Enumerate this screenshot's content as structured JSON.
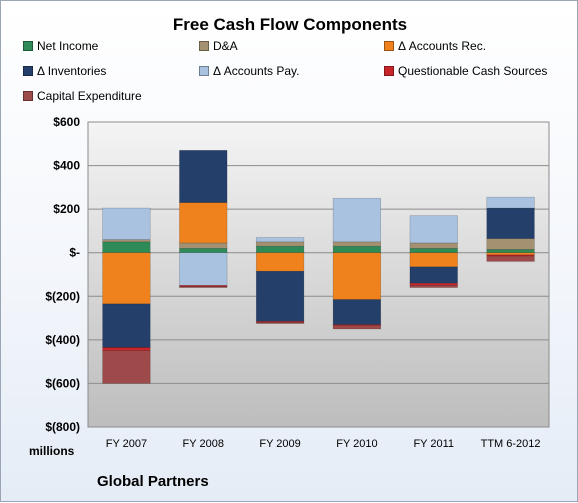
{
  "chart_data": {
    "type": "bar",
    "stacked": true,
    "title": "Free Cash Flow Components",
    "categories": [
      "FY 2007",
      "FY 2008",
      "FY 2009",
      "FY 2010",
      "FY 2011",
      "TTM 6-2012"
    ],
    "ylabel": "millions",
    "ylim": [
      -800,
      600
    ],
    "yticks": [
      600,
      400,
      200,
      0,
      -200,
      -400,
      -600,
      -800
    ],
    "ytick_labels": [
      "$600",
      "$400",
      "$200",
      "$-",
      "$(200)",
      "$(400)",
      "$(600)",
      "$(800)"
    ],
    "grid": true,
    "legend_position": "top",
    "series": [
      {
        "name": "Net Income",
        "color": "#2e8b57",
        "values": [
          50,
          20,
          30,
          30,
          20,
          15
        ]
      },
      {
        "name": "D&A",
        "color": "#a39171",
        "values": [
          10,
          25,
          20,
          20,
          25,
          50
        ]
      },
      {
        "name": "Δ Accounts Rec.",
        "color": "#f0821e",
        "values": [
          -235,
          185,
          -85,
          -215,
          -65,
          -10
        ]
      },
      {
        "name": "Δ Inventories",
        "color": "#243f6a",
        "values": [
          -200,
          240,
          -230,
          -115,
          -75,
          140
        ]
      },
      {
        "name": "Δ Accounts Pay.",
        "color": "#a9c2e0",
        "values": [
          145,
          -150,
          20,
          200,
          125,
          50
        ]
      },
      {
        "name": "Questionable Cash Sources",
        "color": "#c8252b",
        "values": [
          -15,
          -5,
          -5,
          -5,
          -10,
          -5
        ]
      },
      {
        "name": "Capital Expenditure",
        "color": "#9e4a4a",
        "values": [
          -150,
          -5,
          -5,
          -15,
          -10,
          -25
        ]
      }
    ]
  },
  "company": "Global Partners"
}
